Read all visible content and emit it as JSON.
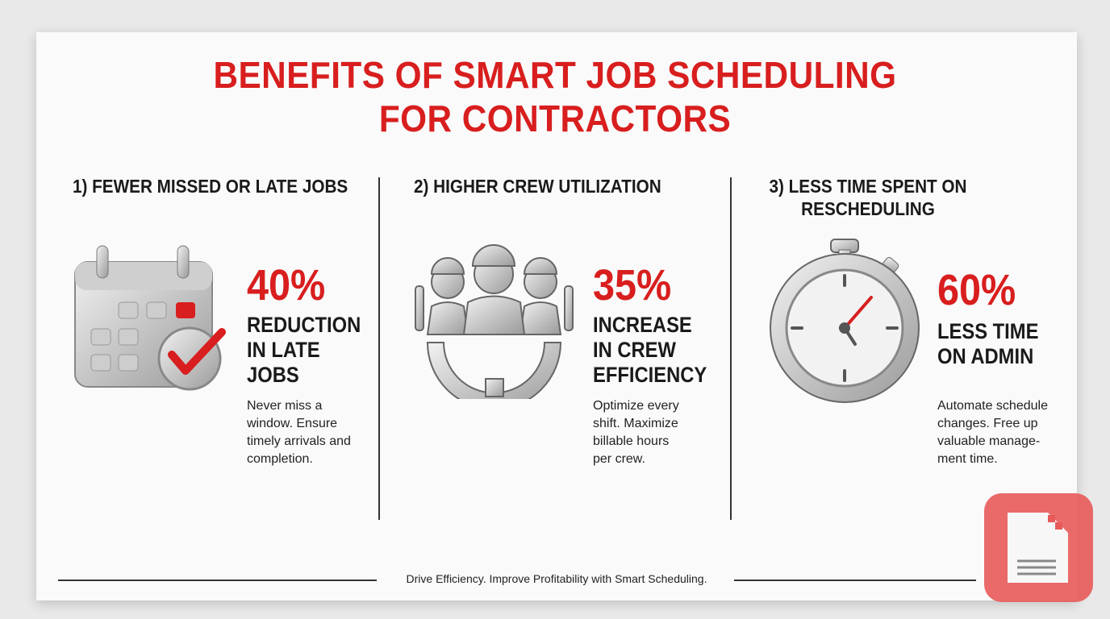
{
  "header": {
    "title_lines": [
      "BENEFITS OF SMART JOB SCHEDULING",
      "FOR CONTRACTORS"
    ]
  },
  "columns": [
    {
      "heading_lines": [
        "1) FEWER MISSED OR LATE JOBS"
      ],
      "stat": "40%",
      "stat_label_lines": [
        "REDUCTION",
        "IN LATE",
        "JOBS"
      ],
      "description_lines": [
        "Never miss a",
        "window. Ensure",
        "timely arrivals and",
        "completion."
      ]
    },
    {
      "heading_lines": [
        "2) HIGHER CREW UTILIZATION"
      ],
      "stat": "35%",
      "stat_label_lines": [
        "INCREASE",
        "IN CREW",
        "EFFICIENCY"
      ],
      "description_lines": [
        "Optimize every",
        "shift. Maximize",
        "billable hours",
        "per crew."
      ]
    },
    {
      "heading_lines": [
        "3) LESS TIME SPENT ON",
        "RESCHEDULING"
      ],
      "stat": "60%",
      "stat_label_lines": [
        "LESS TIME",
        "ON ADMIN"
      ],
      "description_lines": [
        "Automate schedule",
        "changes. Free up",
        "valuable manage-",
        "ment time."
      ]
    }
  ],
  "footer": {
    "text": "Drive Efficiency. Improve Profitability with Smart Scheduling."
  }
}
